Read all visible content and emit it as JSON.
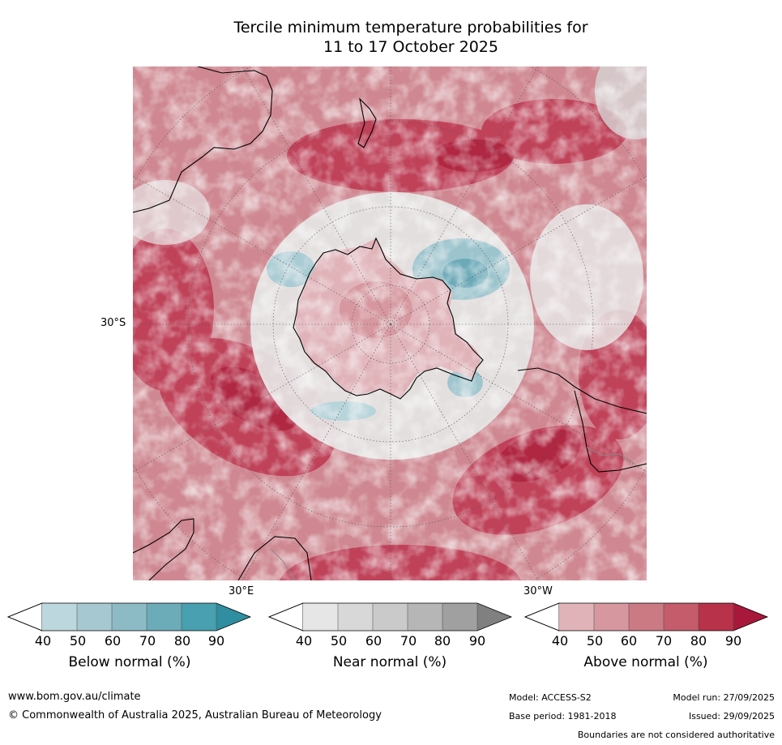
{
  "title": {
    "line1": "Tercile minimum temperature probabilities for",
    "line2": "11 to 17 October 2025"
  },
  "map": {
    "projection": "south-polar-stereographic",
    "lat_label": "30°S",
    "lon_labels": [
      "30°E",
      "30°W"
    ],
    "colors": {
      "above_60": "#c8707a",
      "above_80": "#b8304a",
      "near": "#e4e4e4",
      "below": "#8fbcc8",
      "coast": "#000000",
      "border": "#888888",
      "grid": "#555555"
    }
  },
  "colorbars": [
    {
      "name": "below",
      "label": "Below normal (%)",
      "ticks": [
        "40",
        "50",
        "60",
        "70",
        "80",
        "90"
      ],
      "colors": [
        "#ffffff",
        "#bdd7de",
        "#a6c9d1",
        "#8dbbc5",
        "#6cabb8",
        "#48a0b0",
        "#2f8ea0"
      ]
    },
    {
      "name": "near",
      "label": "Near normal (%)",
      "ticks": [
        "40",
        "50",
        "60",
        "70",
        "80",
        "90"
      ],
      "colors": [
        "#ffffff",
        "#e6e6e6",
        "#d8d8d8",
        "#cacaca",
        "#b6b6b6",
        "#a0a0a0",
        "#808080"
      ]
    },
    {
      "name": "above",
      "label": "Above normal (%)",
      "ticks": [
        "40",
        "50",
        "60",
        "70",
        "80",
        "90"
      ],
      "colors": [
        "#ffffff",
        "#e0b3b9",
        "#d6979f",
        "#cb7a84",
        "#c45c6b",
        "#b83249",
        "#a8183a"
      ]
    }
  ],
  "footer": {
    "website": "www.bom.gov.au/climate",
    "copyright": "© Commonwealth of Australia 2025, Australian Bureau of Meteorology",
    "model": "Model: ACCESS-S2",
    "base_period": "Base period: 1981-2018",
    "model_run": "Model run: 27/09/2025",
    "issued": "Issued: 29/09/2025",
    "disclaimer": "Boundaries are not considered authoritative"
  }
}
